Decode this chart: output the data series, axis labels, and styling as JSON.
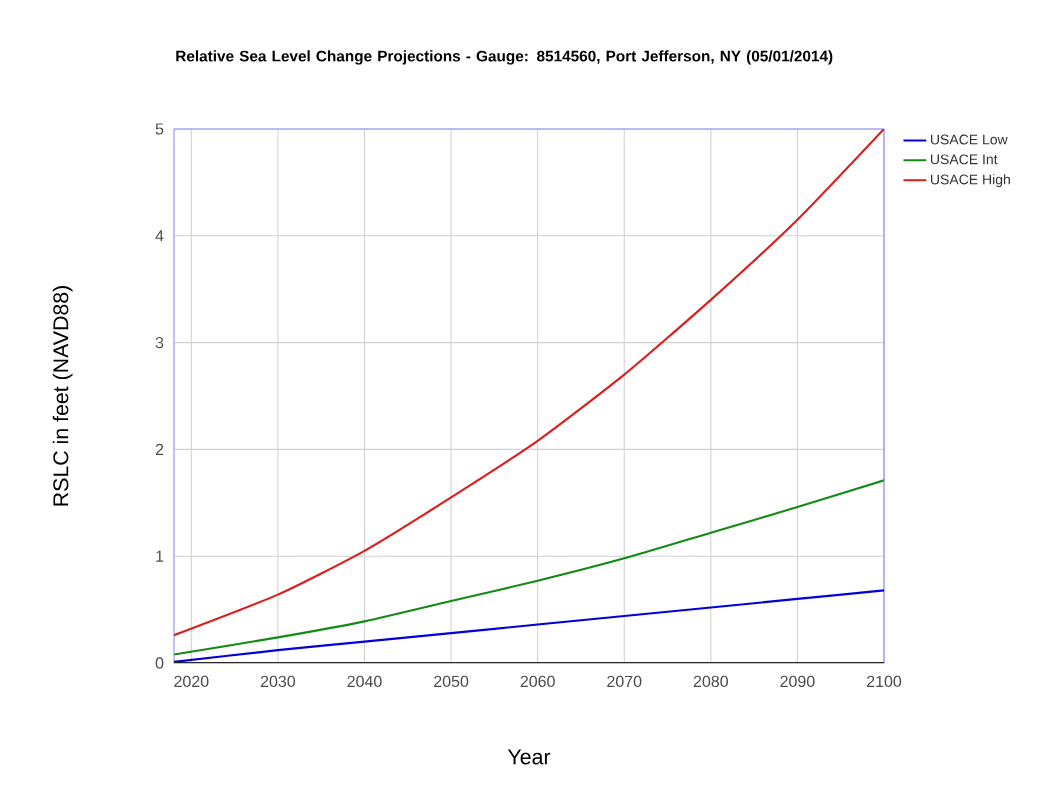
{
  "chart_data": {
    "type": "line",
    "title": "Relative Sea Level Change Projections - Gauge: 8514560, Port Jefferson, NY (05/01/2014)",
    "xlabel": "Year",
    "ylabel": "RSLC in feet (NAVD88)",
    "x": [
      2018,
      2030,
      2040,
      2050,
      2060,
      2070,
      2080,
      2090,
      2100
    ],
    "series": [
      {
        "name": "USACE Low",
        "color": "#0000dd",
        "values": [
          0.01,
          0.12,
          0.2,
          0.28,
          0.36,
          0.44,
          0.52,
          0.6,
          0.68
        ]
      },
      {
        "name": "USACE Int",
        "color": "#138a13",
        "values": [
          0.08,
          0.24,
          0.39,
          0.58,
          0.77,
          0.98,
          1.22,
          1.46,
          1.71
        ]
      },
      {
        "name": "USACE High",
        "color": "#dd1c1c",
        "values": [
          0.26,
          0.64,
          1.05,
          1.55,
          2.08,
          2.7,
          3.4,
          4.15,
          5.0
        ]
      }
    ],
    "xlim": [
      2018,
      2100
    ],
    "ylim": [
      0,
      5
    ],
    "xticks": [
      2020,
      2030,
      2040,
      2050,
      2060,
      2070,
      2080,
      2090,
      2100
    ],
    "yticks": [
      0,
      1,
      2,
      3,
      4,
      5
    ],
    "grid": true,
    "legend": "top right",
    "marker": "none",
    "line_style": "solid"
  }
}
